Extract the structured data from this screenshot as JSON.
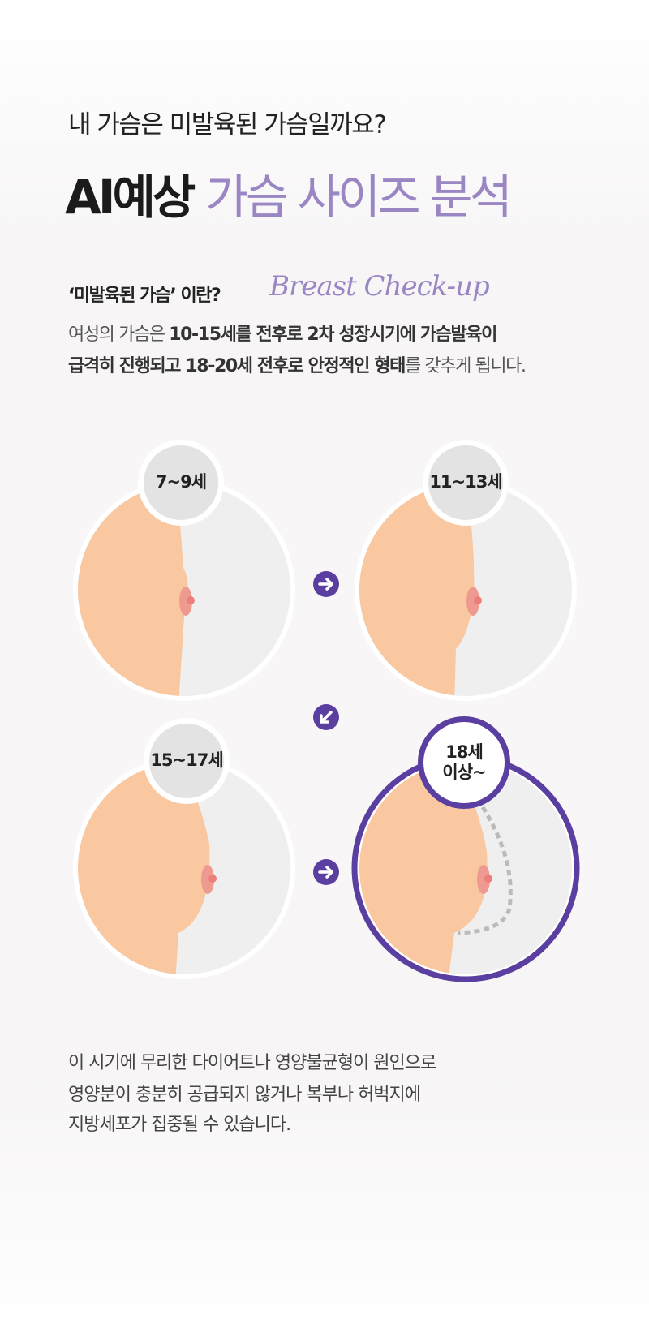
{
  "header": {
    "question": "내 가슴은 미발육된 가슴일까요?",
    "title_main": "AI예상",
    "title_accent": "가슴 사이즈 분석"
  },
  "intro": {
    "heading": "‘미발육된 가슴’ 이란?",
    "script": "Breast Check-up",
    "line1_a": "여성의 가슴은 ",
    "line1_b": "10-15세를 전후로 2차 성장시기에 가슴발육이",
    "line2_a": "급격히 진행되고 18-20세 전후로 안정적인 형태",
    "line2_b": "를 갖추게 됩니다."
  },
  "stages": [
    {
      "label": "7~9세"
    },
    {
      "label": "11~13세"
    },
    {
      "label": "15~17세"
    },
    {
      "label": "18세 이상~"
    }
  ],
  "arrows": [
    "arrow-right",
    "arrow-down-left",
    "arrow-right"
  ],
  "footer": {
    "lines": [
      "이 시기에 무리한 다이어트나 영양불균형이 원인으로",
      "영양분이 충분히 공급되지 않거나 복부나 허벅지에",
      "지방세포가 집중될 수 있습니다."
    ]
  },
  "colors": {
    "accent": "#9b86c4",
    "purple": "#5a3ea0",
    "skin": "#f9c7a0",
    "nipple": "#ee8f8a",
    "panel": "#efeff0"
  }
}
